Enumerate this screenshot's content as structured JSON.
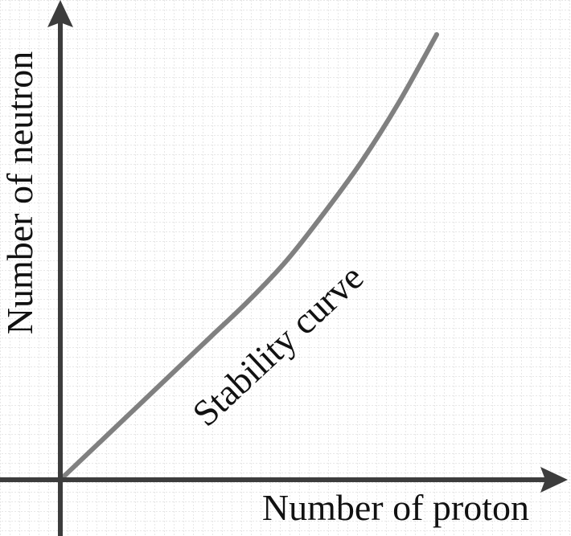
{
  "chart_data": {
    "type": "line",
    "title": "",
    "xlabel": "Number of proton",
    "ylabel": "Number of neutron",
    "xlim": [
      0,
      100
    ],
    "ylim": [
      0,
      100
    ],
    "grid": true,
    "ticks": false,
    "series": [
      {
        "label": "Stability curve",
        "color": "#808080",
        "x": [
          0,
          10,
          20,
          30,
          40,
          50,
          60,
          70,
          80,
          90,
          100
        ],
        "y": [
          0,
          9,
          18,
          27,
          36,
          45,
          55,
          67,
          80,
          95,
          112
        ]
      }
    ]
  },
  "colors": {
    "axis": "#3c3c3c",
    "grid": "#c8c8c8",
    "curve": "#808080"
  }
}
